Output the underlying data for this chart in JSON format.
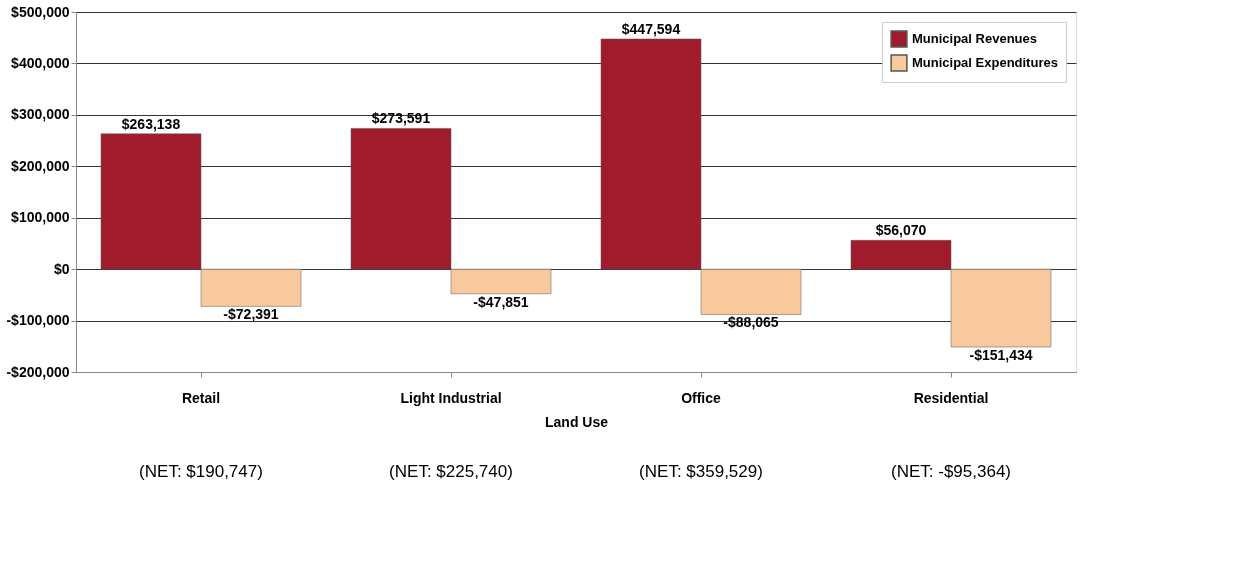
{
  "chart_data": {
    "type": "bar",
    "categories": [
      "Retail",
      "Light Industrial",
      "Office",
      "Residential"
    ],
    "xlabel": "Land Use",
    "series": [
      {
        "name": "Municipal Revenues",
        "color": "#a01c2c",
        "values": [
          263138,
          273591,
          447594,
          56070
        ],
        "value_labels": [
          "$263,138",
          "$273,591",
          "$447,594",
          "$56,070"
        ]
      },
      {
        "name": "Municipal Expenditures",
        "color": "#f8c99c",
        "values": [
          -72391,
          -47851,
          -88065,
          -151434
        ],
        "value_labels": [
          "-$72,391",
          "-$47,851",
          "-$88,065",
          "-$151,434"
        ]
      }
    ],
    "ylim": [
      -200000,
      500000
    ],
    "yticks": [
      {
        "value": -200000,
        "label": "-$200,000"
      },
      {
        "value": -100000,
        "label": "-$100,000"
      },
      {
        "value": 0,
        "label": "$0"
      },
      {
        "value": 100000,
        "label": "$100,000"
      },
      {
        "value": 200000,
        "label": "$200,000"
      },
      {
        "value": 300000,
        "label": "$300,000"
      },
      {
        "value": 400000,
        "label": "$400,000"
      },
      {
        "value": 500000,
        "label": "$500,000"
      }
    ],
    "grid": "y",
    "legend": "top right",
    "annotations": [
      "(NET: $190,747)",
      "(NET: $225,740)",
      "(NET: $359,529)",
      "(NET: -$95,364)"
    ]
  }
}
